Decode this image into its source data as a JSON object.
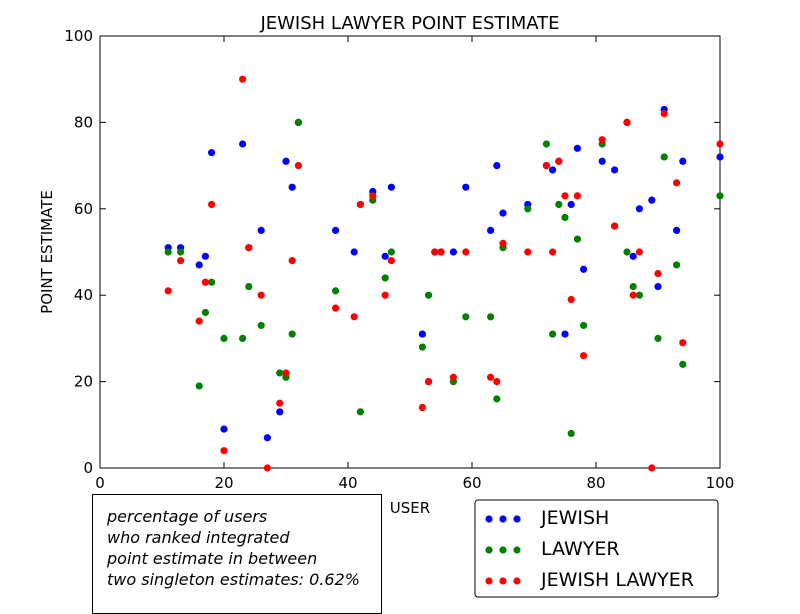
{
  "chart_data": {
    "type": "scatter",
    "title": "JEWISH LAWYER POINT ESTIMATE",
    "xlabel": "USER",
    "ylabel": "POINT ESTIMATE",
    "xlim": [
      0,
      100
    ],
    "ylim": [
      0,
      100
    ],
    "xticks": [
      0,
      20,
      40,
      60,
      80,
      100
    ],
    "yticks": [
      0,
      20,
      40,
      60,
      80,
      100
    ],
    "grid": false,
    "legend_position": "bottom-right",
    "series": [
      {
        "name": "JEWISH",
        "color": "#0000ff",
        "points": [
          [
            11,
            51
          ],
          [
            13,
            51
          ],
          [
            16,
            47
          ],
          [
            17,
            49
          ],
          [
            18,
            73
          ],
          [
            20,
            9
          ],
          [
            23,
            75
          ],
          [
            24,
            51
          ],
          [
            26,
            55
          ],
          [
            27,
            7
          ],
          [
            29,
            13
          ],
          [
            30,
            71
          ],
          [
            31,
            65
          ],
          [
            32,
            80
          ],
          [
            38,
            55
          ],
          [
            41,
            50
          ],
          [
            42,
            61
          ],
          [
            44,
            64
          ],
          [
            46,
            49
          ],
          [
            47,
            65
          ],
          [
            52,
            31
          ],
          [
            53,
            20
          ],
          [
            54,
            50
          ],
          [
            55,
            50
          ],
          [
            57,
            50
          ],
          [
            59,
            65
          ],
          [
            63,
            55
          ],
          [
            64,
            70
          ],
          [
            65,
            59
          ],
          [
            69,
            61
          ],
          [
            72,
            70
          ],
          [
            73,
            69
          ],
          [
            74,
            71
          ],
          [
            75,
            31
          ],
          [
            76,
            61
          ],
          [
            77,
            74
          ],
          [
            78,
            46
          ],
          [
            81,
            71
          ],
          [
            83,
            69
          ],
          [
            85,
            80
          ],
          [
            86,
            49
          ],
          [
            87,
            60
          ],
          [
            89,
            62
          ],
          [
            90,
            42
          ],
          [
            91,
            83
          ],
          [
            93,
            55
          ],
          [
            94,
            71
          ],
          [
            100,
            72
          ]
        ]
      },
      {
        "name": "LAWYER",
        "color": "#008000",
        "points": [
          [
            11,
            50
          ],
          [
            13,
            50
          ],
          [
            16,
            19
          ],
          [
            17,
            36
          ],
          [
            18,
            43
          ],
          [
            20,
            30
          ],
          [
            23,
            30
          ],
          [
            24,
            42
          ],
          [
            26,
            33
          ],
          [
            29,
            22
          ],
          [
            30,
            21
          ],
          [
            31,
            31
          ],
          [
            32,
            80
          ],
          [
            38,
            41
          ],
          [
            42,
            13
          ],
          [
            44,
            62
          ],
          [
            46,
            44
          ],
          [
            47,
            50
          ],
          [
            52,
            28
          ],
          [
            53,
            40
          ],
          [
            57,
            20
          ],
          [
            59,
            35
          ],
          [
            63,
            35
          ],
          [
            64,
            16
          ],
          [
            65,
            51
          ],
          [
            69,
            60
          ],
          [
            72,
            75
          ],
          [
            73,
            31
          ],
          [
            74,
            61
          ],
          [
            75,
            58
          ],
          [
            76,
            8
          ],
          [
            77,
            53
          ],
          [
            78,
            33
          ],
          [
            81,
            75
          ],
          [
            83,
            56
          ],
          [
            85,
            50
          ],
          [
            86,
            42
          ],
          [
            87,
            40
          ],
          [
            90,
            30
          ],
          [
            91,
            72
          ],
          [
            93,
            47
          ],
          [
            94,
            24
          ],
          [
            100,
            63
          ]
        ]
      },
      {
        "name": "JEWISH LAWYER",
        "color": "#ff0000",
        "points": [
          [
            11,
            41
          ],
          [
            13,
            48
          ],
          [
            16,
            34
          ],
          [
            17,
            43
          ],
          [
            18,
            61
          ],
          [
            20,
            4
          ],
          [
            23,
            90
          ],
          [
            24,
            51
          ],
          [
            26,
            40
          ],
          [
            27,
            0
          ],
          [
            29,
            15
          ],
          [
            30,
            22
          ],
          [
            31,
            48
          ],
          [
            32,
            70
          ],
          [
            38,
            37
          ],
          [
            41,
            35
          ],
          [
            42,
            61
          ],
          [
            44,
            63
          ],
          [
            46,
            40
          ],
          [
            47,
            48
          ],
          [
            52,
            14
          ],
          [
            53,
            20
          ],
          [
            54,
            50
          ],
          [
            55,
            50
          ],
          [
            57,
            21
          ],
          [
            59,
            50
          ],
          [
            63,
            21
          ],
          [
            64,
            20
          ],
          [
            65,
            52
          ],
          [
            69,
            50
          ],
          [
            72,
            70
          ],
          [
            73,
            50
          ],
          [
            74,
            71
          ],
          [
            75,
            63
          ],
          [
            76,
            39
          ],
          [
            77,
            63
          ],
          [
            78,
            26
          ],
          [
            81,
            76
          ],
          [
            83,
            56
          ],
          [
            85,
            80
          ],
          [
            86,
            40
          ],
          [
            87,
            50
          ],
          [
            89,
            0
          ],
          [
            90,
            45
          ],
          [
            91,
            82
          ],
          [
            93,
            66
          ],
          [
            94,
            29
          ],
          [
            100,
            75
          ]
        ]
      }
    ],
    "annotation": [
      "percentage of users",
      "who ranked integrated",
      "point estimate in between",
      "two singleton estimates: 0.62%"
    ]
  }
}
